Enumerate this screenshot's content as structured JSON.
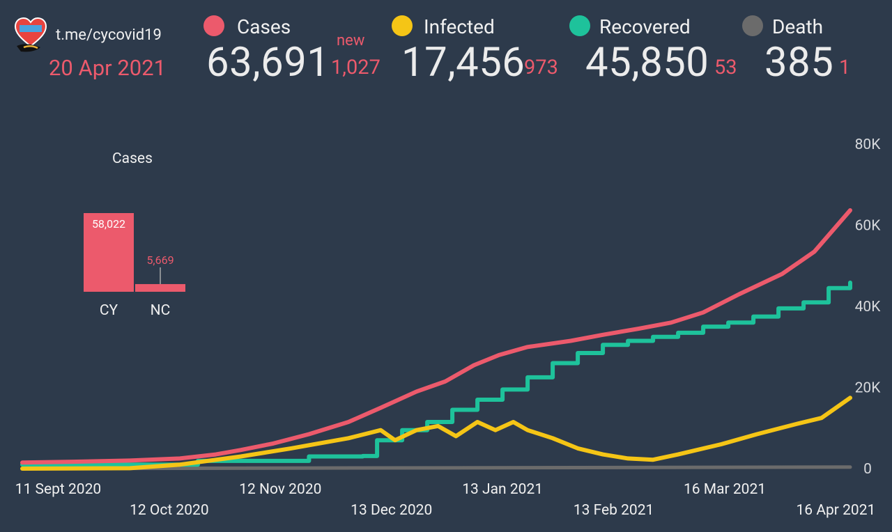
{
  "colors": {
    "background": "#2d3a4b",
    "cases": "#ec5a6c",
    "infected": "#f5c516",
    "recovered": "#1ec29b",
    "death": "#6b6b6b",
    "accent_red": "#ec5a6c"
  },
  "header": {
    "logo_icon": "cyprus-heart-logo-icon",
    "channel": "t.me/cycovid19",
    "date": "20 Apr 2021",
    "new_label": "new",
    "stats": [
      {
        "key": "cases",
        "label": "Cases",
        "total": "63,691",
        "new": "1,027"
      },
      {
        "key": "infected",
        "label": "Infected",
        "total": "17,456",
        "new": "973"
      },
      {
        "key": "recovered",
        "label": "Recovered",
        "total": "45,850",
        "new": "53"
      },
      {
        "key": "death",
        "label": "Death",
        "total": "385",
        "new": "1"
      }
    ]
  },
  "chart_data": [
    {
      "type": "line",
      "title": "",
      "x_type": "date",
      "y_axis_side": "right",
      "ylim": [
        0,
        80000
      ],
      "yticks": [
        0,
        20000,
        40000,
        60000,
        80000
      ],
      "ytick_labels": [
        "0",
        "20K",
        "40K",
        "60K",
        "80K"
      ],
      "xticks": [
        "2020-09-11",
        "2020-10-12",
        "2020-11-12",
        "2020-12-13",
        "2021-01-13",
        "2021-02-13",
        "2021-03-16",
        "2021-04-16"
      ],
      "xtick_labels": [
        "11 Sept 2020",
        "12 Oct 2020",
        "12 Nov 2020",
        "13 Dec 2020",
        "13 Jan 2021",
        "13 Feb 2021",
        "16 Mar 2021",
        "16 Apr 2021"
      ],
      "series": [
        {
          "name": "Cases",
          "color": "#ec5a6c",
          "step": false,
          "x": [
            "2020-09-01",
            "2020-09-15",
            "2020-10-01",
            "2020-10-15",
            "2020-10-25",
            "2020-11-01",
            "2020-11-10",
            "2020-11-20",
            "2020-12-01",
            "2020-12-10",
            "2020-12-20",
            "2020-12-28",
            "2021-01-05",
            "2021-01-12",
            "2021-01-20",
            "2021-02-01",
            "2021-02-10",
            "2021-02-20",
            "2021-03-01",
            "2021-03-10",
            "2021-03-20",
            "2021-04-01",
            "2021-04-10",
            "2021-04-20"
          ],
          "y": [
            1500,
            1700,
            2000,
            2500,
            3500,
            4600,
            6200,
            8500,
            11500,
            15000,
            19000,
            21500,
            25500,
            28000,
            30000,
            31500,
            33000,
            34500,
            36000,
            38500,
            43000,
            48000,
            53500,
            63691
          ]
        },
        {
          "name": "Recovered",
          "color": "#1ec29b",
          "step": true,
          "x": [
            "2020-09-01",
            "2020-10-20",
            "2020-11-20",
            "2020-12-05",
            "2020-12-09",
            "2020-12-16",
            "2020-12-23",
            "2020-12-30",
            "2021-01-06",
            "2021-01-13",
            "2021-01-20",
            "2021-01-27",
            "2021-02-03",
            "2021-02-10",
            "2021-02-17",
            "2021-02-24",
            "2021-03-03",
            "2021-03-10",
            "2021-03-17",
            "2021-03-24",
            "2021-03-31",
            "2021-04-07",
            "2021-04-14",
            "2021-04-20"
          ],
          "y": [
            1000,
            1900,
            3000,
            3100,
            7000,
            9500,
            11500,
            14500,
            17000,
            19500,
            22500,
            26000,
            28500,
            30500,
            31500,
            32500,
            33500,
            35000,
            36000,
            37500,
            39500,
            41000,
            44500,
            45850
          ]
        },
        {
          "name": "Infected",
          "color": "#f5c516",
          "step": false,
          "x": [
            "2020-09-01",
            "2020-10-01",
            "2020-10-15",
            "2020-11-01",
            "2020-11-15",
            "2020-12-01",
            "2020-12-10",
            "2020-12-14",
            "2020-12-20",
            "2020-12-26",
            "2020-12-31",
            "2021-01-06",
            "2021-01-11",
            "2021-01-16",
            "2021-01-20",
            "2021-01-27",
            "2021-02-03",
            "2021-02-10",
            "2021-02-17",
            "2021-02-24",
            "2021-03-03",
            "2021-03-15",
            "2021-03-25",
            "2021-04-05",
            "2021-04-12",
            "2021-04-20"
          ],
          "y": [
            0,
            100,
            1000,
            3000,
            5000,
            7500,
            9500,
            7000,
            9500,
            10500,
            8000,
            11500,
            9500,
            11500,
            9500,
            7500,
            5000,
            3500,
            2500,
            2200,
            3500,
            6000,
            8500,
            11000,
            12500,
            17456
          ]
        },
        {
          "name": "Death",
          "color": "#6b6b6b",
          "step": false,
          "x": [
            "2020-09-01",
            "2021-04-20"
          ],
          "y": [
            20,
            385
          ]
        }
      ]
    },
    {
      "type": "bar",
      "title": "Cases",
      "categories": [
        "CY",
        "NC"
      ],
      "values": [
        58022,
        5669
      ],
      "value_labels": [
        "58,022",
        "5,669"
      ],
      "color": "#ec5a6c"
    }
  ]
}
